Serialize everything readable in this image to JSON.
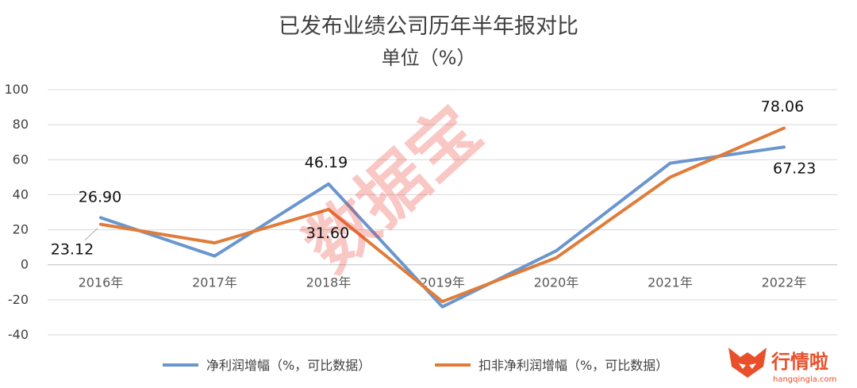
{
  "chart_data": {
    "type": "line",
    "title": "已发布业绩公司历年半年报对比",
    "subtitle": "单位（%）",
    "categories": [
      "2016年",
      "2017年",
      "2018年",
      "2019年",
      "2020年",
      "2021年",
      "2022年"
    ],
    "series": [
      {
        "name": "净利润增幅（%，可比数据）",
        "color": "#6a96cf",
        "values": [
          26.9,
          5,
          46.19,
          -24,
          8,
          58,
          67.23
        ]
      },
      {
        "name": "扣非净利润增幅（%，可比数据）",
        "color": "#e07c3a",
        "values": [
          23.12,
          12.5,
          31.6,
          -21,
          4,
          50,
          78.06
        ]
      }
    ],
    "ylim": [
      -40,
      100
    ],
    "yticks": [
      -40,
      -20,
      0,
      20,
      40,
      60,
      80,
      100
    ],
    "grid": true,
    "legend": "bottom",
    "data_labels": [
      {
        "series": 0,
        "index": 0,
        "text": "26.90"
      },
      {
        "series": 1,
        "index": 0,
        "text": "23.12"
      },
      {
        "series": 0,
        "index": 2,
        "text": "46.19"
      },
      {
        "series": 1,
        "index": 2,
        "text": "31.60"
      },
      {
        "series": 1,
        "index": 6,
        "text": "78.06"
      },
      {
        "series": 0,
        "index": 6,
        "text": "67.23"
      }
    ]
  },
  "watermark": "数据宝",
  "logo": {
    "name": "行情啦",
    "site": "hangqingla.com",
    "icon": "fox-head-icon"
  }
}
